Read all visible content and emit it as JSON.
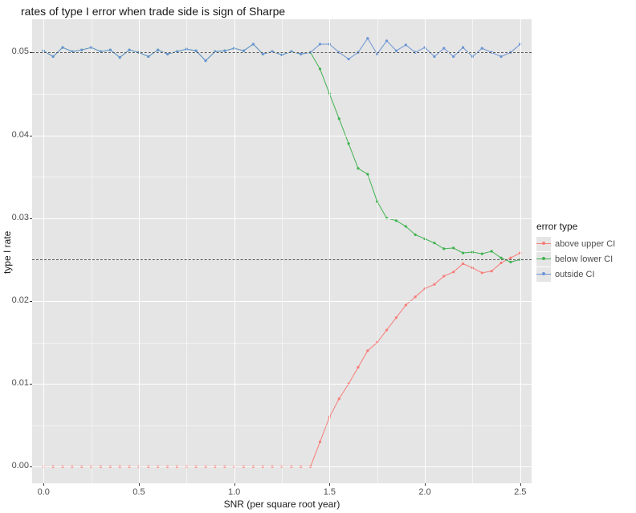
{
  "title": "rates of type I error when trade side is sign of Sharpe",
  "y_axis": {
    "label": "type I rate",
    "min": -0.002,
    "max": 0.054,
    "ticks": [
      0.0,
      0.01,
      0.02,
      0.03,
      0.04,
      0.05
    ],
    "tick_labels": [
      "0.00",
      "0.01",
      "0.02",
      "0.03",
      "0.04",
      "0.05"
    ],
    "minor_ticks": [
      0.005,
      0.015,
      0.025,
      0.035,
      0.045
    ]
  },
  "x_axis": {
    "label": "SNR (per square root year)",
    "min": -0.06,
    "max": 2.56,
    "ticks": [
      0.0,
      0.5,
      1.0,
      1.5,
      2.0,
      2.5
    ],
    "tick_labels": [
      "0.0",
      "0.5",
      "1.0",
      "1.5",
      "2.0",
      "2.5"
    ],
    "minor_ticks": [
      0.25,
      0.75,
      1.25,
      1.75,
      2.25
    ]
  },
  "reference_lines_y": [
    0.025,
    0.05
  ],
  "reference_color": "#555555",
  "background_color": "#e5e5e5",
  "grid_color": "#ffffff",
  "series": [
    {
      "name": "above upper CI",
      "color": "#f67d79",
      "line_width": 1,
      "marker_size": 2.2,
      "x": [
        0.0,
        0.05,
        0.1,
        0.15,
        0.2,
        0.25,
        0.3,
        0.35,
        0.4,
        0.45,
        0.5,
        0.55,
        0.6,
        0.65,
        0.7,
        0.75,
        0.8,
        0.85,
        0.9,
        0.95,
        1.0,
        1.05,
        1.1,
        1.15,
        1.2,
        1.25,
        1.3,
        1.35,
        1.4,
        1.45,
        1.5,
        1.55,
        1.6,
        1.65,
        1.7,
        1.75,
        1.8,
        1.85,
        1.9,
        1.95,
        2.0,
        2.05,
        2.1,
        2.15,
        2.2,
        2.25,
        2.3,
        2.35,
        2.4,
        2.45,
        2.5
      ],
      "y": [
        0,
        0,
        0,
        0,
        0,
        0,
        0,
        0,
        0,
        0,
        0,
        0,
        0,
        0,
        0,
        0,
        0,
        0,
        0,
        0,
        0,
        0,
        0,
        0,
        0,
        0,
        0,
        0,
        0.0,
        0.003,
        0.006,
        0.0082,
        0.01,
        0.012,
        0.014,
        0.015,
        0.0165,
        0.018,
        0.0195,
        0.0205,
        0.0215,
        0.022,
        0.023,
        0.0235,
        0.0245,
        0.024,
        0.0234,
        0.0236,
        0.0246,
        0.0252,
        0.0258
      ]
    },
    {
      "name": "below lower CI",
      "color": "#3fb24f",
      "line_width": 1,
      "marker_size": 2.2,
      "x": [
        0.0,
        0.05,
        0.1,
        0.15,
        0.2,
        0.25,
        0.3,
        0.35,
        0.4,
        0.45,
        0.5,
        0.55,
        0.6,
        0.65,
        0.7,
        0.75,
        0.8,
        0.85,
        0.9,
        0.95,
        1.0,
        1.05,
        1.1,
        1.15,
        1.2,
        1.25,
        1.3,
        1.35,
        1.4,
        1.45,
        1.5,
        1.55,
        1.6,
        1.65,
        1.7,
        1.75,
        1.8,
        1.85,
        1.9,
        1.95,
        2.0,
        2.05,
        2.1,
        2.15,
        2.2,
        2.25,
        2.3,
        2.35,
        2.4,
        2.45,
        2.5
      ],
      "y": [
        0.0502,
        0.0495,
        0.0506,
        0.0501,
        0.0503,
        0.0506,
        0.0501,
        0.0503,
        0.0494,
        0.0503,
        0.05,
        0.0495,
        0.0503,
        0.0498,
        0.0501,
        0.0504,
        0.0502,
        0.049,
        0.0501,
        0.0502,
        0.0505,
        0.0502,
        0.051,
        0.0498,
        0.0501,
        0.0497,
        0.0501,
        0.0498,
        0.05,
        0.048,
        0.045,
        0.042,
        0.039,
        0.036,
        0.0353,
        0.032,
        0.03,
        0.0297,
        0.029,
        0.028,
        0.0275,
        0.027,
        0.0263,
        0.0264,
        0.0258,
        0.0259,
        0.0257,
        0.026,
        0.0252,
        0.0247,
        0.025
      ]
    },
    {
      "name": "outside CI",
      "color": "#6a94d4",
      "line_width": 1,
      "marker_size": 2.2,
      "x": [
        0.0,
        0.05,
        0.1,
        0.15,
        0.2,
        0.25,
        0.3,
        0.35,
        0.4,
        0.45,
        0.5,
        0.55,
        0.6,
        0.65,
        0.7,
        0.75,
        0.8,
        0.85,
        0.9,
        0.95,
        1.0,
        1.05,
        1.1,
        1.15,
        1.2,
        1.25,
        1.3,
        1.35,
        1.4,
        1.45,
        1.5,
        1.55,
        1.6,
        1.65,
        1.7,
        1.75,
        1.8,
        1.85,
        1.9,
        1.95,
        2.0,
        2.05,
        2.1,
        2.15,
        2.2,
        2.25,
        2.3,
        2.35,
        2.4,
        2.45,
        2.5
      ],
      "y": [
        0.0502,
        0.0495,
        0.0506,
        0.0501,
        0.0503,
        0.0506,
        0.0501,
        0.0503,
        0.0494,
        0.0503,
        0.05,
        0.0495,
        0.0503,
        0.0498,
        0.0501,
        0.0504,
        0.0502,
        0.049,
        0.0501,
        0.0502,
        0.0505,
        0.0502,
        0.051,
        0.0498,
        0.0501,
        0.0497,
        0.0501,
        0.0498,
        0.05,
        0.051,
        0.051,
        0.05,
        0.0492,
        0.05,
        0.0517,
        0.0498,
        0.0514,
        0.0502,
        0.0509,
        0.05,
        0.0506,
        0.0495,
        0.0505,
        0.0495,
        0.0506,
        0.0495,
        0.0505,
        0.05,
        0.0495,
        0.05,
        0.051
      ]
    }
  ],
  "legend": {
    "title": "error type",
    "items": [
      {
        "label": "above upper CI",
        "color": "#f67d79"
      },
      {
        "label": "below lower CI",
        "color": "#3fb24f"
      },
      {
        "label": "outside CI",
        "color": "#6a94d4"
      }
    ]
  },
  "title_fontsize": 14,
  "axis_label_fontsize": 12,
  "tick_fontsize": 11
}
